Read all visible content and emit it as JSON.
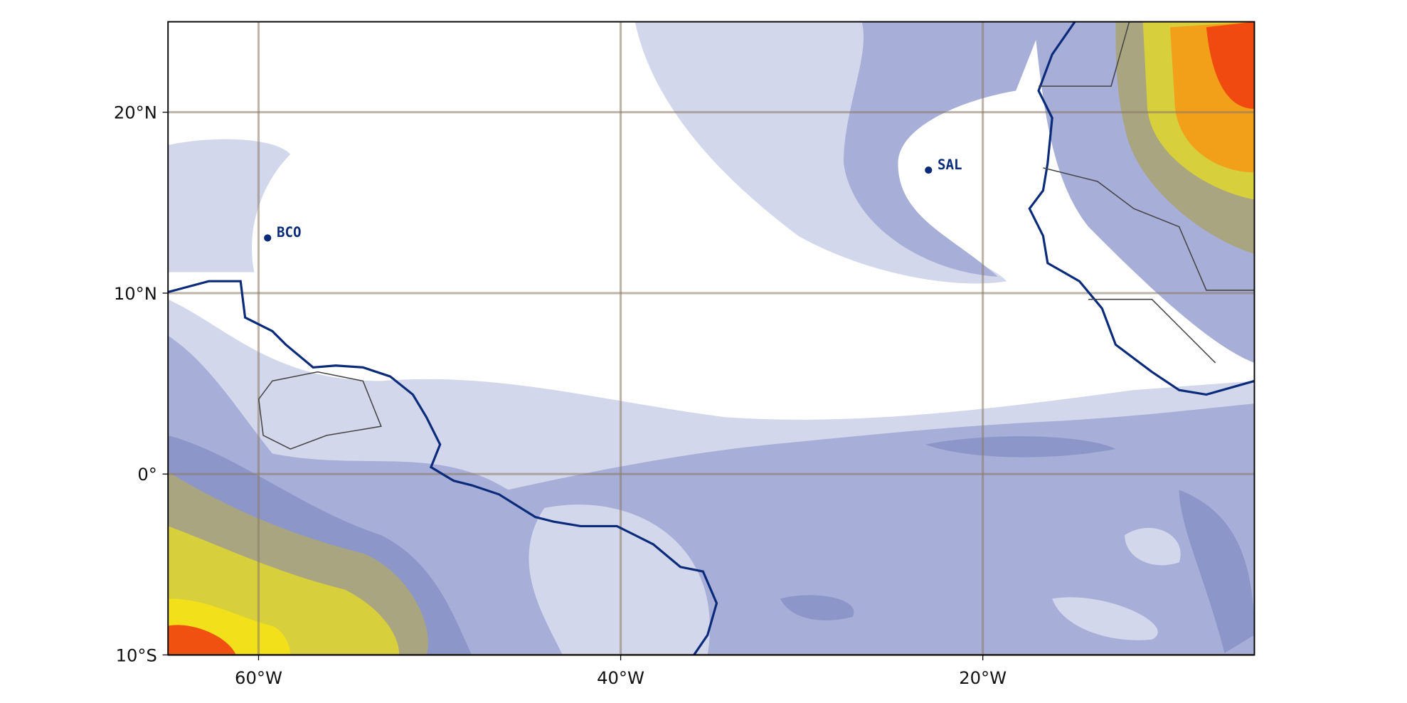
{
  "map": {
    "lonlim": [
      -65,
      -5
    ],
    "latlim": [
      -10,
      25
    ],
    "xticks": [
      {
        "value": -60,
        "label": "60°W"
      },
      {
        "value": -40,
        "label": "40°W"
      },
      {
        "value": -20,
        "label": "20°W"
      }
    ],
    "yticks": [
      {
        "value": 20,
        "label": "20°N"
      },
      {
        "value": 10,
        "label": "10°N"
      },
      {
        "value": 0,
        "label": "0°"
      },
      {
        "value": -10,
        "label": "10°S"
      }
    ],
    "stations": [
      {
        "name": "BCO",
        "lon": -59.5,
        "lat": 13.05
      },
      {
        "name": "SAL",
        "lon": -23,
        "lat": 16.8
      }
    ]
  }
}
